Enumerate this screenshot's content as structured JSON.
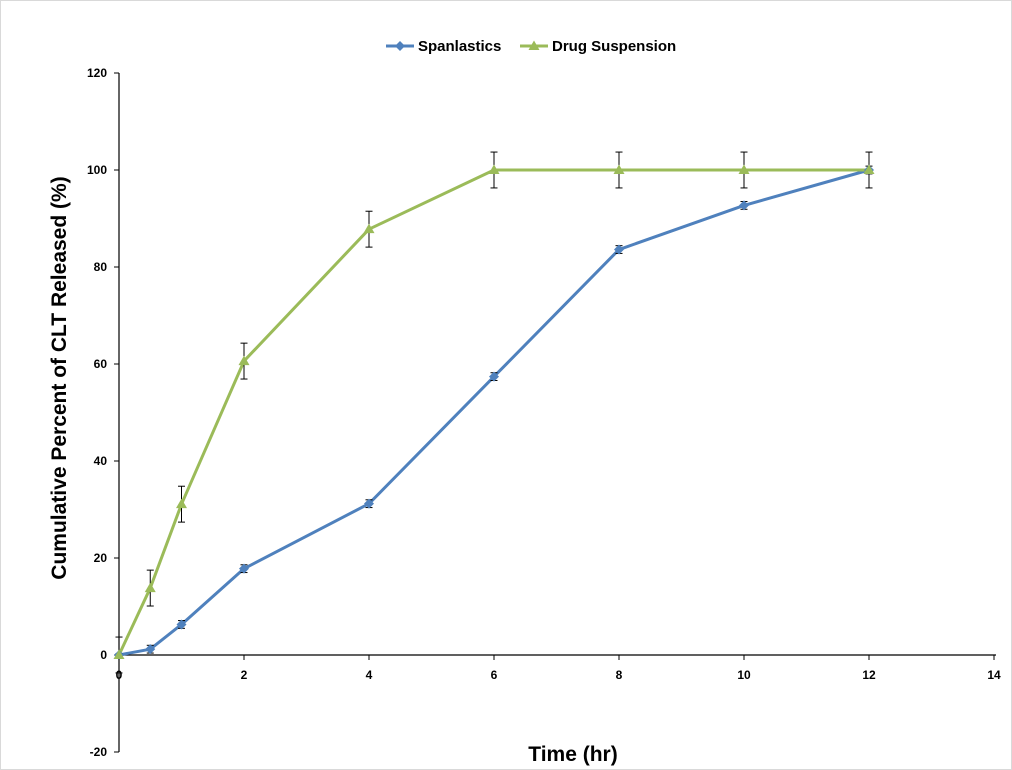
{
  "chart_data": {
    "type": "line",
    "title": "",
    "xlabel": "Time (hr)",
    "ylabel": "Cumulative Percent of CLT Released (%)",
    "xlim": [
      0,
      14
    ],
    "ylim": [
      -20,
      120
    ],
    "x_ticks": [
      "0",
      "2",
      "4",
      "6",
      "8",
      "10",
      "12",
      "14"
    ],
    "y_ticks": [
      "-20",
      "0",
      "20",
      "40",
      "60",
      "80",
      "100",
      "120"
    ],
    "grid": false,
    "legend_position": "top-center",
    "series": [
      {
        "name": "Spanlastics",
        "color": "#4f81bd",
        "marker": "diamond",
        "x": [
          0,
          0.5,
          1,
          2,
          4,
          6,
          8,
          10,
          12
        ],
        "y": [
          0,
          1.2,
          6.3,
          17.8,
          31.2,
          57.4,
          83.6,
          92.7,
          100
        ],
        "error": [
          0.3,
          0.8,
          0.8,
          0.8,
          0.8,
          0.8,
          0.8,
          0.8,
          0.8
        ]
      },
      {
        "name": "Drug Suspension",
        "color": "#9bbb59",
        "marker": "triangle",
        "x": [
          0,
          0.5,
          1,
          2,
          4,
          6,
          8,
          10,
          12
        ],
        "y": [
          0,
          13.8,
          31.1,
          60.6,
          87.8,
          100,
          100,
          100,
          100
        ],
        "error": [
          3.7,
          3.7,
          3.7,
          3.7,
          3.7,
          3.7,
          3.7,
          3.7,
          3.7
        ]
      }
    ]
  }
}
